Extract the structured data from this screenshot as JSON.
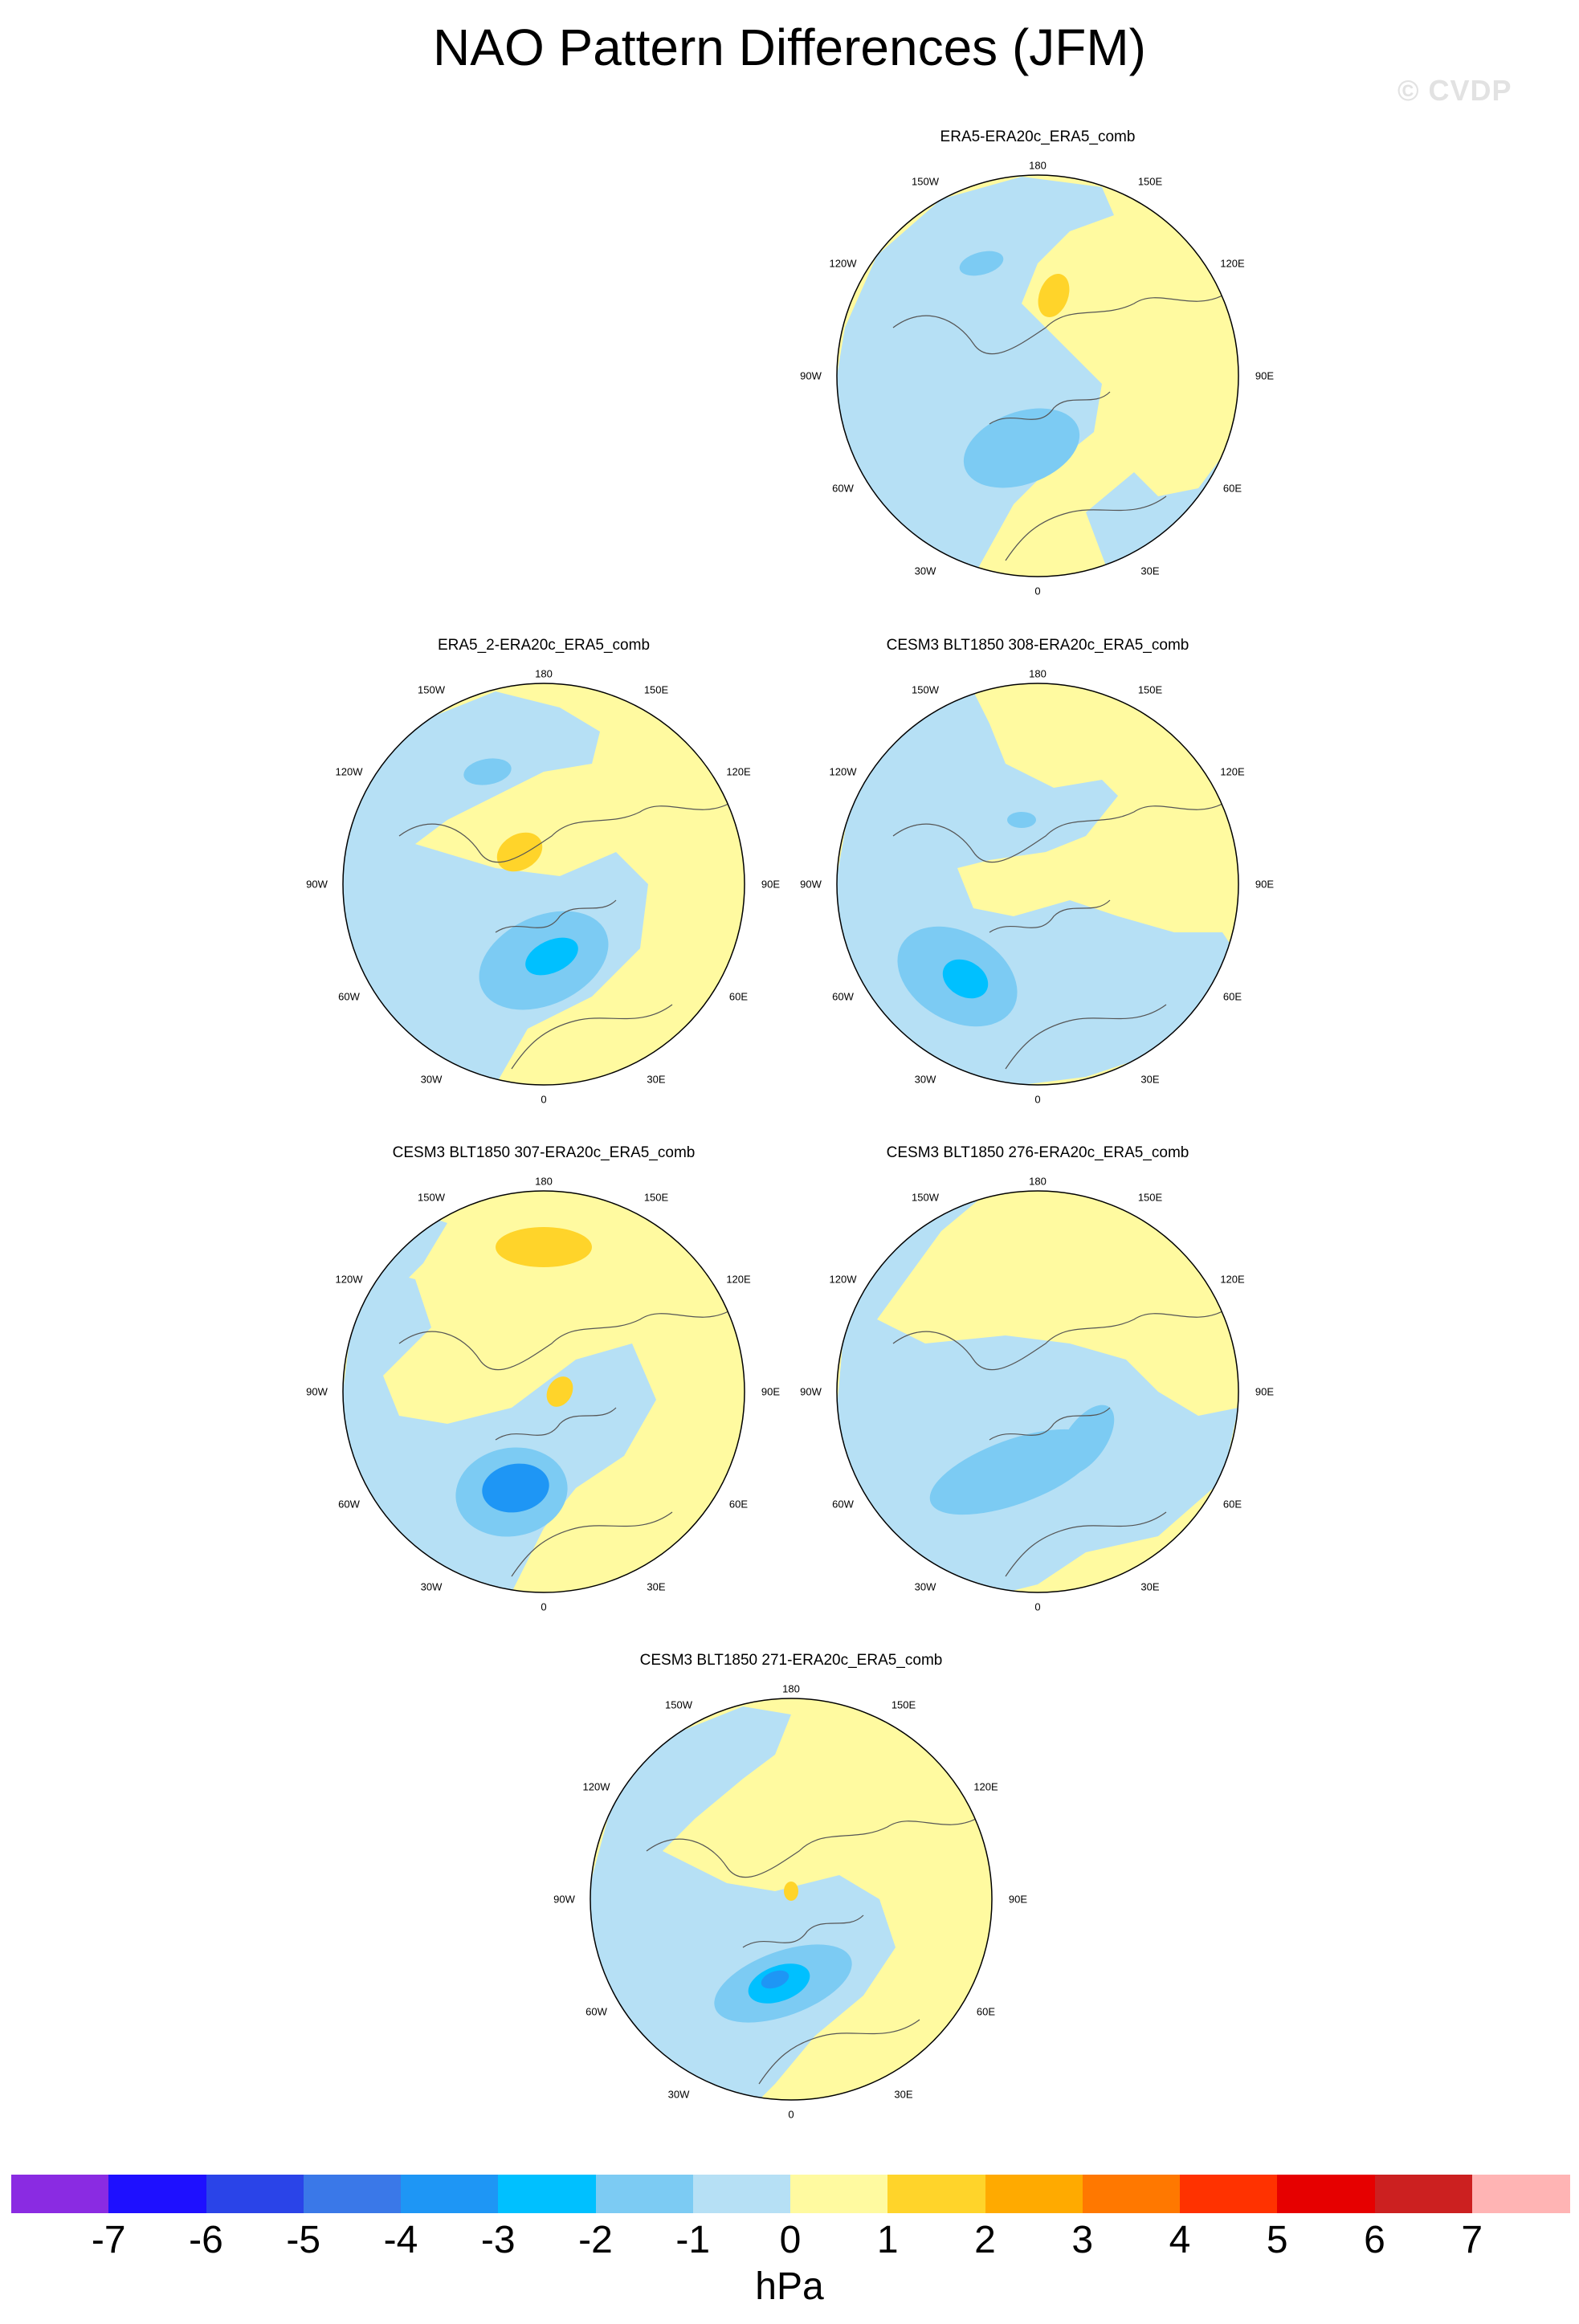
{
  "title": "NAO Pattern Differences (JFM)",
  "watermark": "© CVDP",
  "lon_labels": {
    "l180": "180",
    "l150w": "150W",
    "l150e": "150E",
    "l120w": "120W",
    "l120e": "120E",
    "l90w": "90W",
    "l90e": "90E",
    "l60w": "60W",
    "l60e": "60E",
    "l30w": "30W",
    "l30e": "30E",
    "l0": "0"
  },
  "panels": [
    {
      "title": "ERA5-ERA20c_ERA5_comb"
    },
    {
      "title": "ERA5_2-ERA20c_ERA5_comb"
    },
    {
      "title": "CESM3 BLT1850 308-ERA20c_ERA5_comb"
    },
    {
      "title": "CESM3 BLT1850 307-ERA20c_ERA5_comb"
    },
    {
      "title": "CESM3 BLT1850 276-ERA20c_ERA5_comb"
    },
    {
      "title": "CESM3 BLT1850 271-ERA20c_ERA5_comb"
    }
  ],
  "colorbar": {
    "units": "hPa",
    "labels": [
      "-7",
      "-6",
      "-5",
      "-4",
      "-3",
      "-2",
      "-1",
      "0",
      "1",
      "2",
      "3",
      "4",
      "5",
      "6",
      "7"
    ],
    "colors": [
      "#8a2be2",
      "#1e10ff",
      "#2a44e8",
      "#3a78e8",
      "#1e96f5",
      "#00c0ff",
      "#7ccbf3",
      "#b6e0f5",
      "#fffaa0",
      "#ffd42a",
      "#ffaa00",
      "#ff7800",
      "#ff3200",
      "#e60000",
      "#cc2020",
      "#ffb4b4"
    ]
  }
}
